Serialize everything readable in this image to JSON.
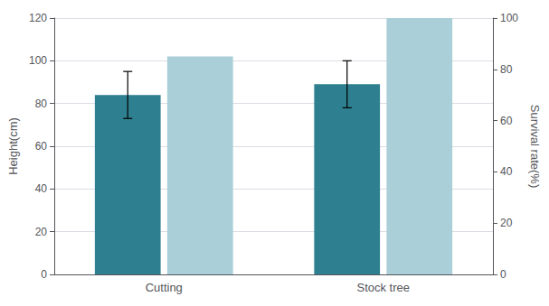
{
  "chart_data": {
    "type": "bar",
    "categories": [
      "Cutting",
      "Stock tree"
    ],
    "ylabel": "Height(cm)",
    "y2label": "Survival rate(%)",
    "series": [
      {
        "type": "bar",
        "color": "#2e7f8f",
        "values": [
          84,
          89
        ],
        "errors": {
          "lower": [
            11,
            11
          ],
          "upper": [
            11,
            11
          ]
        }
      },
      {
        "type": "bar",
        "color": "#aacfd8",
        "values": [
          85,
          100
        ],
        "axis": "y2"
      }
    ],
    "ylim": [
      0,
      120
    ],
    "yticks": [
      0,
      20,
      40,
      60,
      80,
      100,
      120
    ],
    "y2lim": [
      0,
      100
    ],
    "y2ticks": [
      0,
      20,
      40,
      60,
      80,
      100
    ],
    "grid": true
  }
}
